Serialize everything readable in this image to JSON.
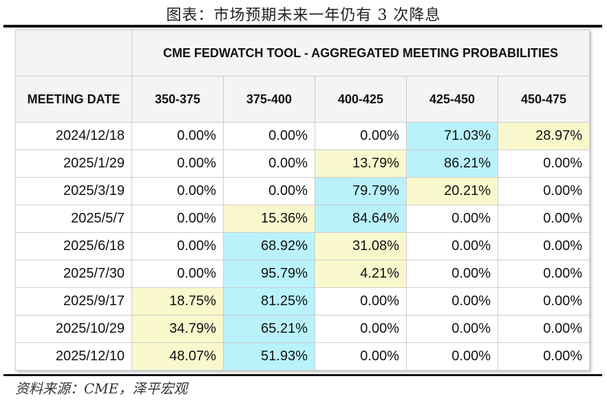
{
  "title": "图表：市场预期未来一年仍有 3 次降息",
  "table": {
    "group_header": "CME FEDWATCH TOOL - AGGREGATED MEETING PROBABILITIES",
    "columns": [
      "MEETING DATE",
      "350-375",
      "375-400",
      "400-425",
      "425-450",
      "450-475"
    ],
    "highlight_colors": {
      "blue": "#b9f2fb",
      "yellow": "#f9f8cd"
    },
    "rows": [
      {
        "date": "2024/12/18",
        "values": [
          "0.00%",
          "0.00%",
          "0.00%",
          "71.03%",
          "28.97%"
        ],
        "highlight": [
          "",
          "",
          "",
          "blue",
          "yellow"
        ]
      },
      {
        "date": "2025/1/29",
        "values": [
          "0.00%",
          "0.00%",
          "13.79%",
          "86.21%",
          "0.00%"
        ],
        "highlight": [
          "",
          "",
          "yellow",
          "blue",
          ""
        ]
      },
      {
        "date": "2025/3/19",
        "values": [
          "0.00%",
          "0.00%",
          "79.79%",
          "20.21%",
          "0.00%"
        ],
        "highlight": [
          "",
          "",
          "blue",
          "yellow",
          ""
        ]
      },
      {
        "date": "2025/5/7",
        "values": [
          "0.00%",
          "15.36%",
          "84.64%",
          "0.00%",
          "0.00%"
        ],
        "highlight": [
          "",
          "yellow",
          "blue",
          "",
          ""
        ]
      },
      {
        "date": "2025/6/18",
        "values": [
          "0.00%",
          "68.92%",
          "31.08%",
          "0.00%",
          "0.00%"
        ],
        "highlight": [
          "",
          "blue",
          "yellow",
          "",
          ""
        ]
      },
      {
        "date": "2025/7/30",
        "values": [
          "0.00%",
          "95.79%",
          "4.21%",
          "0.00%",
          "0.00%"
        ],
        "highlight": [
          "",
          "blue",
          "yellow",
          "",
          ""
        ]
      },
      {
        "date": "2025/9/17",
        "values": [
          "18.75%",
          "81.25%",
          "0.00%",
          "0.00%",
          "0.00%"
        ],
        "highlight": [
          "yellow",
          "blue",
          "",
          "",
          ""
        ]
      },
      {
        "date": "2025/10/29",
        "values": [
          "34.79%",
          "65.21%",
          "0.00%",
          "0.00%",
          "0.00%"
        ],
        "highlight": [
          "yellow",
          "blue",
          "",
          "",
          ""
        ]
      },
      {
        "date": "2025/12/10",
        "values": [
          "48.07%",
          "51.93%",
          "0.00%",
          "0.00%",
          "0.00%"
        ],
        "highlight": [
          "yellow",
          "blue",
          "",
          "",
          ""
        ]
      }
    ]
  },
  "source": "资料来源：CME，泽平宏观"
}
